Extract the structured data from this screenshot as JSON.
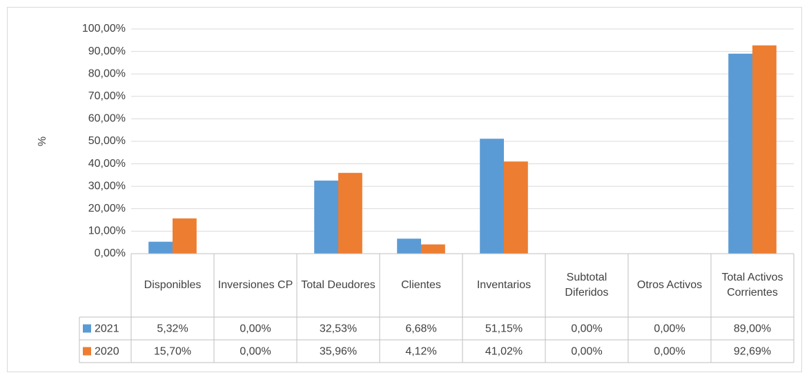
{
  "chart_data": {
    "type": "bar",
    "y_label": "%",
    "categories": [
      "Disponibles",
      "Inversiones CP",
      "Total Deudores",
      "Clientes",
      "Inventarios",
      "Subtotal Diferidos",
      "Otros Activos",
      "Total Activos Corrientes"
    ],
    "series": [
      {
        "name": "2021",
        "color": "#5b9bd5",
        "values": [
          5.32,
          0,
          32.53,
          6.68,
          51.15,
          0,
          0,
          89.0
        ],
        "value_labels": [
          "5,32%",
          "0,00%",
          "32,53%",
          "6,68%",
          "51,15%",
          "0,00%",
          "0,00%",
          "89,00%"
        ]
      },
      {
        "name": "2020",
        "color": "#ed7d31",
        "values": [
          15.7,
          0,
          35.96,
          4.12,
          41.02,
          0,
          0,
          92.69
        ],
        "value_labels": [
          "15,70%",
          "0,00%",
          "35,96%",
          "4,12%",
          "41,02%",
          "0,00%",
          "0,00%",
          "92,69%"
        ]
      }
    ],
    "ylim": [
      0,
      100
    ],
    "yticks": [
      {
        "value": 0,
        "label": "0,00%"
      },
      {
        "value": 10,
        "label": "10,00%"
      },
      {
        "value": 20,
        "label": "20,00%"
      },
      {
        "value": 30,
        "label": "30,00%"
      },
      {
        "value": 40,
        "label": "40,00%"
      },
      {
        "value": 50,
        "label": "50,00%"
      },
      {
        "value": 60,
        "label": "60,00%"
      },
      {
        "value": 70,
        "label": "70,00%"
      },
      {
        "value": 80,
        "label": "80,00%"
      },
      {
        "value": 90,
        "label": "90,00%"
      },
      {
        "value": 100,
        "label": "100,00%"
      }
    ],
    "grid": true
  }
}
